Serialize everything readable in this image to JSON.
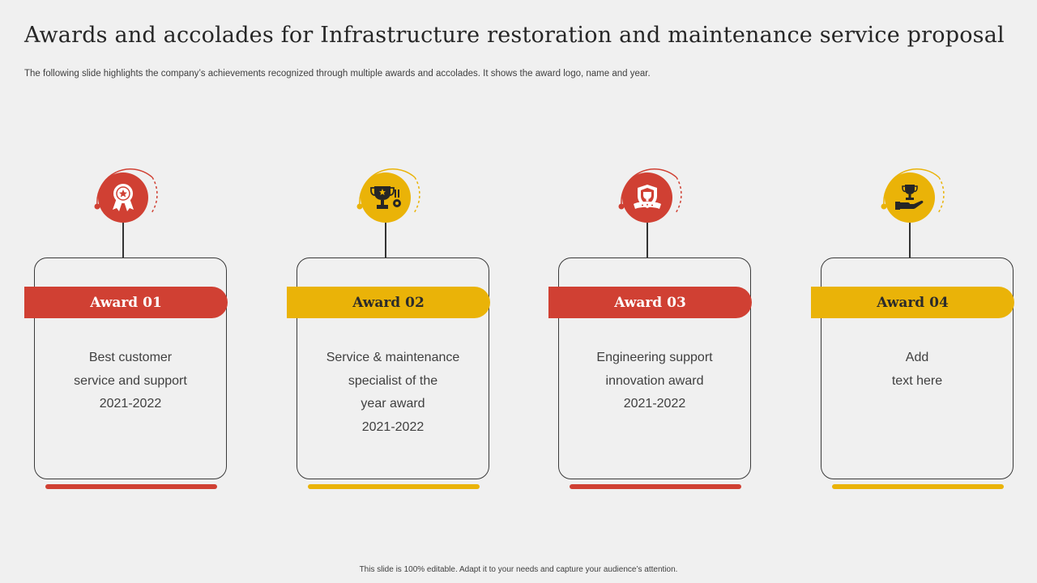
{
  "slide": {
    "title": "Awards and accolades for Infrastructure restoration and maintenance service proposal",
    "subtitle": "The following slide highlights the company’s achievements recognized through multiple awards and accolades. It shows the award logo, name and year.",
    "footer": "This slide is 100% editable.  Adapt it to your needs and capture your audience’s attention."
  },
  "colors": {
    "red": "#d04033",
    "yellow": "#eab308",
    "background": "#f0f0f0",
    "text": "#404040"
  },
  "awards": [
    {
      "label": "Award 01",
      "icon": "rosette-icon",
      "theme": "red",
      "lines": [
        "Best customer",
        "service and support",
        "2021-2022"
      ]
    },
    {
      "label": "Award 02",
      "icon": "trophy-medal-icon",
      "theme": "yellow",
      "lines": [
        "Service & maintenance",
        "specialist of the",
        "year award",
        "2021-2022"
      ]
    },
    {
      "label": "Award 03",
      "icon": "shield-badge-icon",
      "theme": "red",
      "lines": [
        "Engineering support",
        "innovation award",
        "2021-2022"
      ]
    },
    {
      "label": "Award 04",
      "icon": "trophy-hand-icon",
      "theme": "yellow",
      "lines": [
        "Add",
        "text here"
      ]
    }
  ]
}
